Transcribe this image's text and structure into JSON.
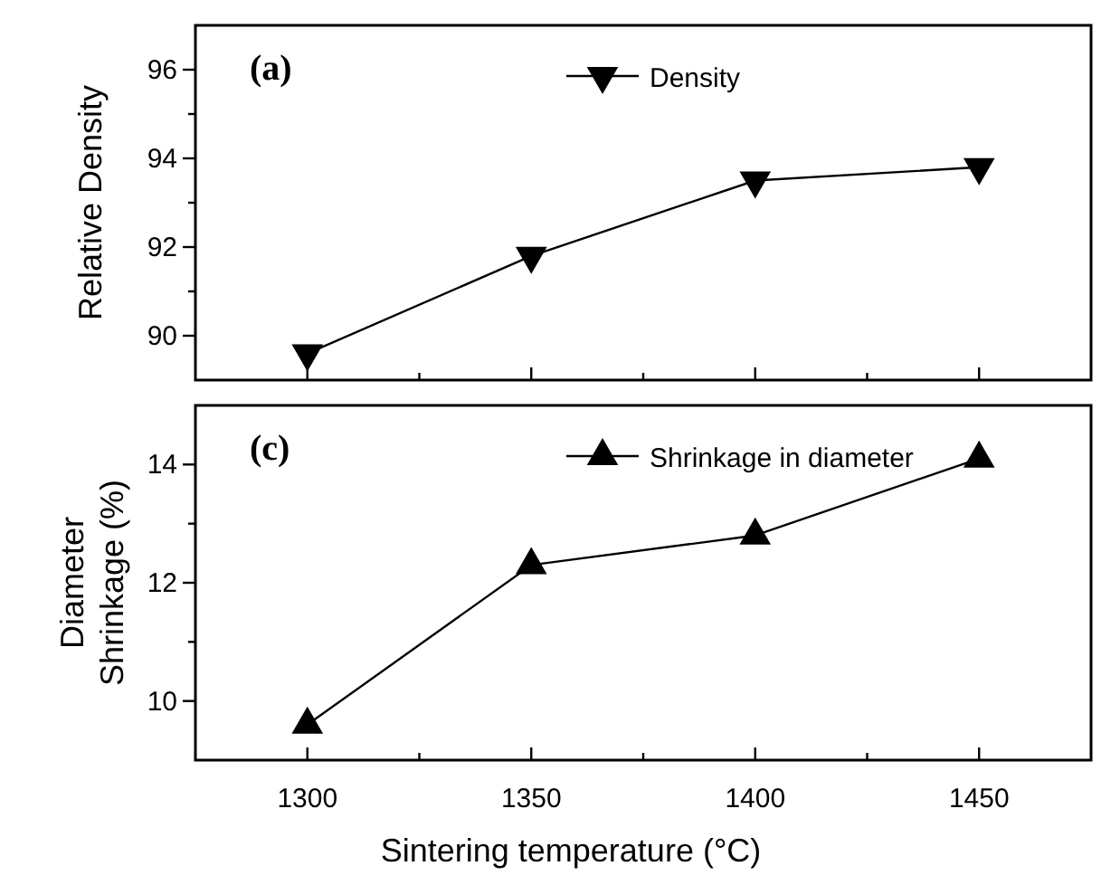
{
  "chart_data": [
    {
      "type": "line",
      "ylabel": "Relative Density",
      "annotations": [
        "(a)"
      ],
      "x": [
        1300,
        1350,
        1400,
        1450
      ],
      "series": [
        {
          "name": "Density",
          "color": "#000000",
          "values": [
            89.6,
            91.8,
            93.5,
            93.8
          ],
          "marker": "triangle-down"
        }
      ],
      "xlim": [
        1275,
        1475
      ],
      "xticks": [
        1300,
        {
          "value": 1325,
          "label": null
        },
        1350,
        {
          "value": 1375,
          "label": null
        },
        1400,
        {
          "value": 1425,
          "label": null
        },
        1450
      ],
      "ylim": [
        89,
        97
      ],
      "yticks": [
        90,
        {
          "value": 91,
          "label": null
        },
        92,
        {
          "value": 93,
          "label": null
        },
        94,
        {
          "value": 95,
          "label": null
        },
        96
      ],
      "tick_labels": "y",
      "legend": "top right",
      "grid": false,
      "line_style": "solid"
    },
    {
      "type": "line",
      "xlabel": "Sintering temperature (°C)",
      "ylabel": "Diameter Shrinkage (%)",
      "annotations": [
        "(c)"
      ],
      "x": [
        1300,
        1350,
        1400,
        1450
      ],
      "series": [
        {
          "name": "Shrinkage in diameter",
          "color": "#000000",
          "values": [
            9.6,
            12.3,
            12.8,
            14.1
          ],
          "marker": "triangle"
        }
      ],
      "xlim": [
        1275,
        1475
      ],
      "xticks": [
        1300,
        {
          "value": 1325,
          "label": null
        },
        1350,
        {
          "value": 1375,
          "label": null
        },
        1400,
        {
          "value": 1425,
          "label": null
        },
        1450
      ],
      "ylim": [
        9,
        15
      ],
      "yticks": [
        10,
        {
          "value": 11,
          "label": null
        },
        12,
        {
          "value": 13,
          "label": null
        },
        14
      ],
      "legend": "top right",
      "grid": false,
      "line_style": "solid"
    }
  ]
}
